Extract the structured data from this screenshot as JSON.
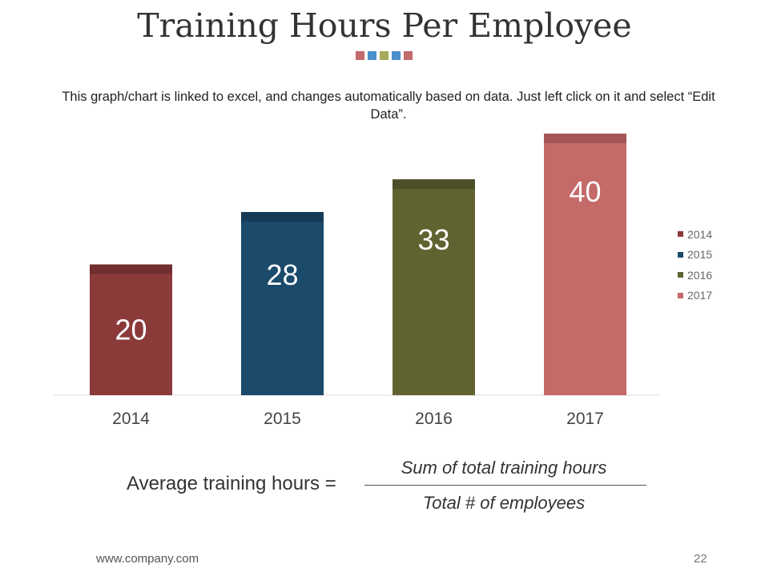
{
  "slide": {
    "title": "Training Hours Per Employee",
    "accent_colors": [
      "#c26a6b",
      "#4a90c8",
      "#a7a95b",
      "#4a90c8",
      "#c26a6b"
    ],
    "description": "This graph/chart is linked to excel, and changes automatically based on data. Just left click on it and select “Edit Data”.",
    "footer_url": "www.company.com",
    "page_number": "22"
  },
  "formula": {
    "lhs": "Average training hours =",
    "numerator": "Sum of total training hours",
    "denominator": "Total # of employees"
  },
  "chart_data": {
    "type": "bar",
    "categories": [
      "2014",
      "2015",
      "2016",
      "2017"
    ],
    "values": [
      20,
      28,
      33,
      40
    ],
    "colors": [
      "#8b3a3a",
      "#1b4a6b",
      "#606330",
      "#c46a68"
    ],
    "cap_colors": [
      "#722e30",
      "#163a56",
      "#4d4f28",
      "#a45656"
    ],
    "legend": [
      "2014",
      "2015",
      "2016",
      "2017"
    ],
    "legend_position": "right",
    "ylim": [
      0,
      40
    ],
    "grid": false
  }
}
